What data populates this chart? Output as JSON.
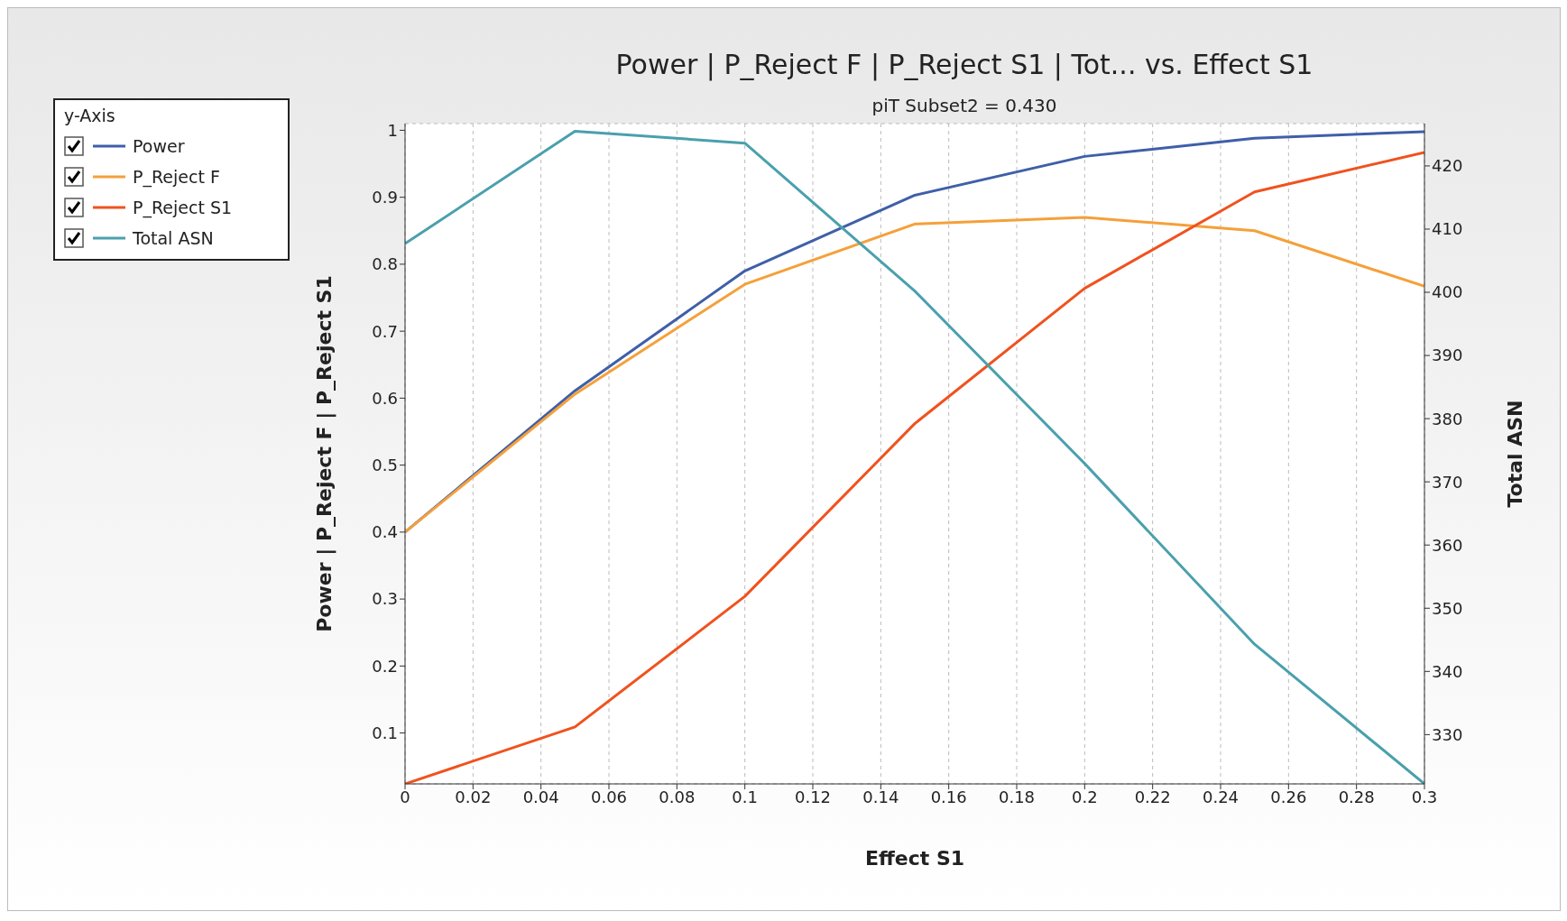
{
  "chart_data": {
    "type": "line",
    "title": "Power | P_Reject F | P_Reject S1 | Tot... vs. Effect S1",
    "subtitle": "piT Subset2 = 0.430",
    "xlabel": "Effect S1",
    "ylabel": "Power | P_Reject F | P_Reject S1",
    "y2label": "Total ASN",
    "legend_title": "y-Axis",
    "legend": "top left",
    "grid": true,
    "marker": "none",
    "line_style": "solid",
    "x": [
      0,
      0.05,
      0.1,
      0.15,
      0.2,
      0.25,
      0.3
    ],
    "xlim": [
      0,
      0.3
    ],
    "xticks": [
      0,
      0.02,
      0.04,
      0.06,
      0.08,
      0.1,
      0.12,
      0.14,
      0.16,
      0.18,
      0.2,
      0.22,
      0.24,
      0.26,
      0.28,
      0.3
    ],
    "ylim": [
      0.024,
      1.01
    ],
    "yticks": [
      0.1,
      0.2,
      0.3,
      0.4,
      0.5,
      0.6,
      0.7,
      0.8,
      0.9,
      1
    ],
    "y2lim": [
      322.2,
      426.7
    ],
    "y2ticks": [
      330,
      340,
      350,
      360,
      370,
      380,
      390,
      400,
      410,
      420
    ],
    "series": [
      {
        "name": "Power",
        "color": "#3f5fa8",
        "values": [
          0.4,
          0.611,
          0.79,
          0.903,
          0.961,
          0.988,
          0.998
        ]
      },
      {
        "name": "P_Reject F",
        "color": "#f5a03a",
        "values": [
          0.4,
          0.606,
          0.77,
          0.86,
          0.87,
          0.85,
          0.767
        ]
      },
      {
        "name": "P_Reject S1",
        "color": "#f0521e",
        "values": [
          0.024,
          0.109,
          0.304,
          0.562,
          0.764,
          0.908,
          0.967
        ]
      },
      {
        "name": "Total ASN",
        "color": "#4aa0ad",
        "axis": "y2",
        "values": [
          407.7,
          425.5,
          423.6,
          400.2,
          372.9,
          344.3,
          322.2
        ]
      }
    ]
  }
}
